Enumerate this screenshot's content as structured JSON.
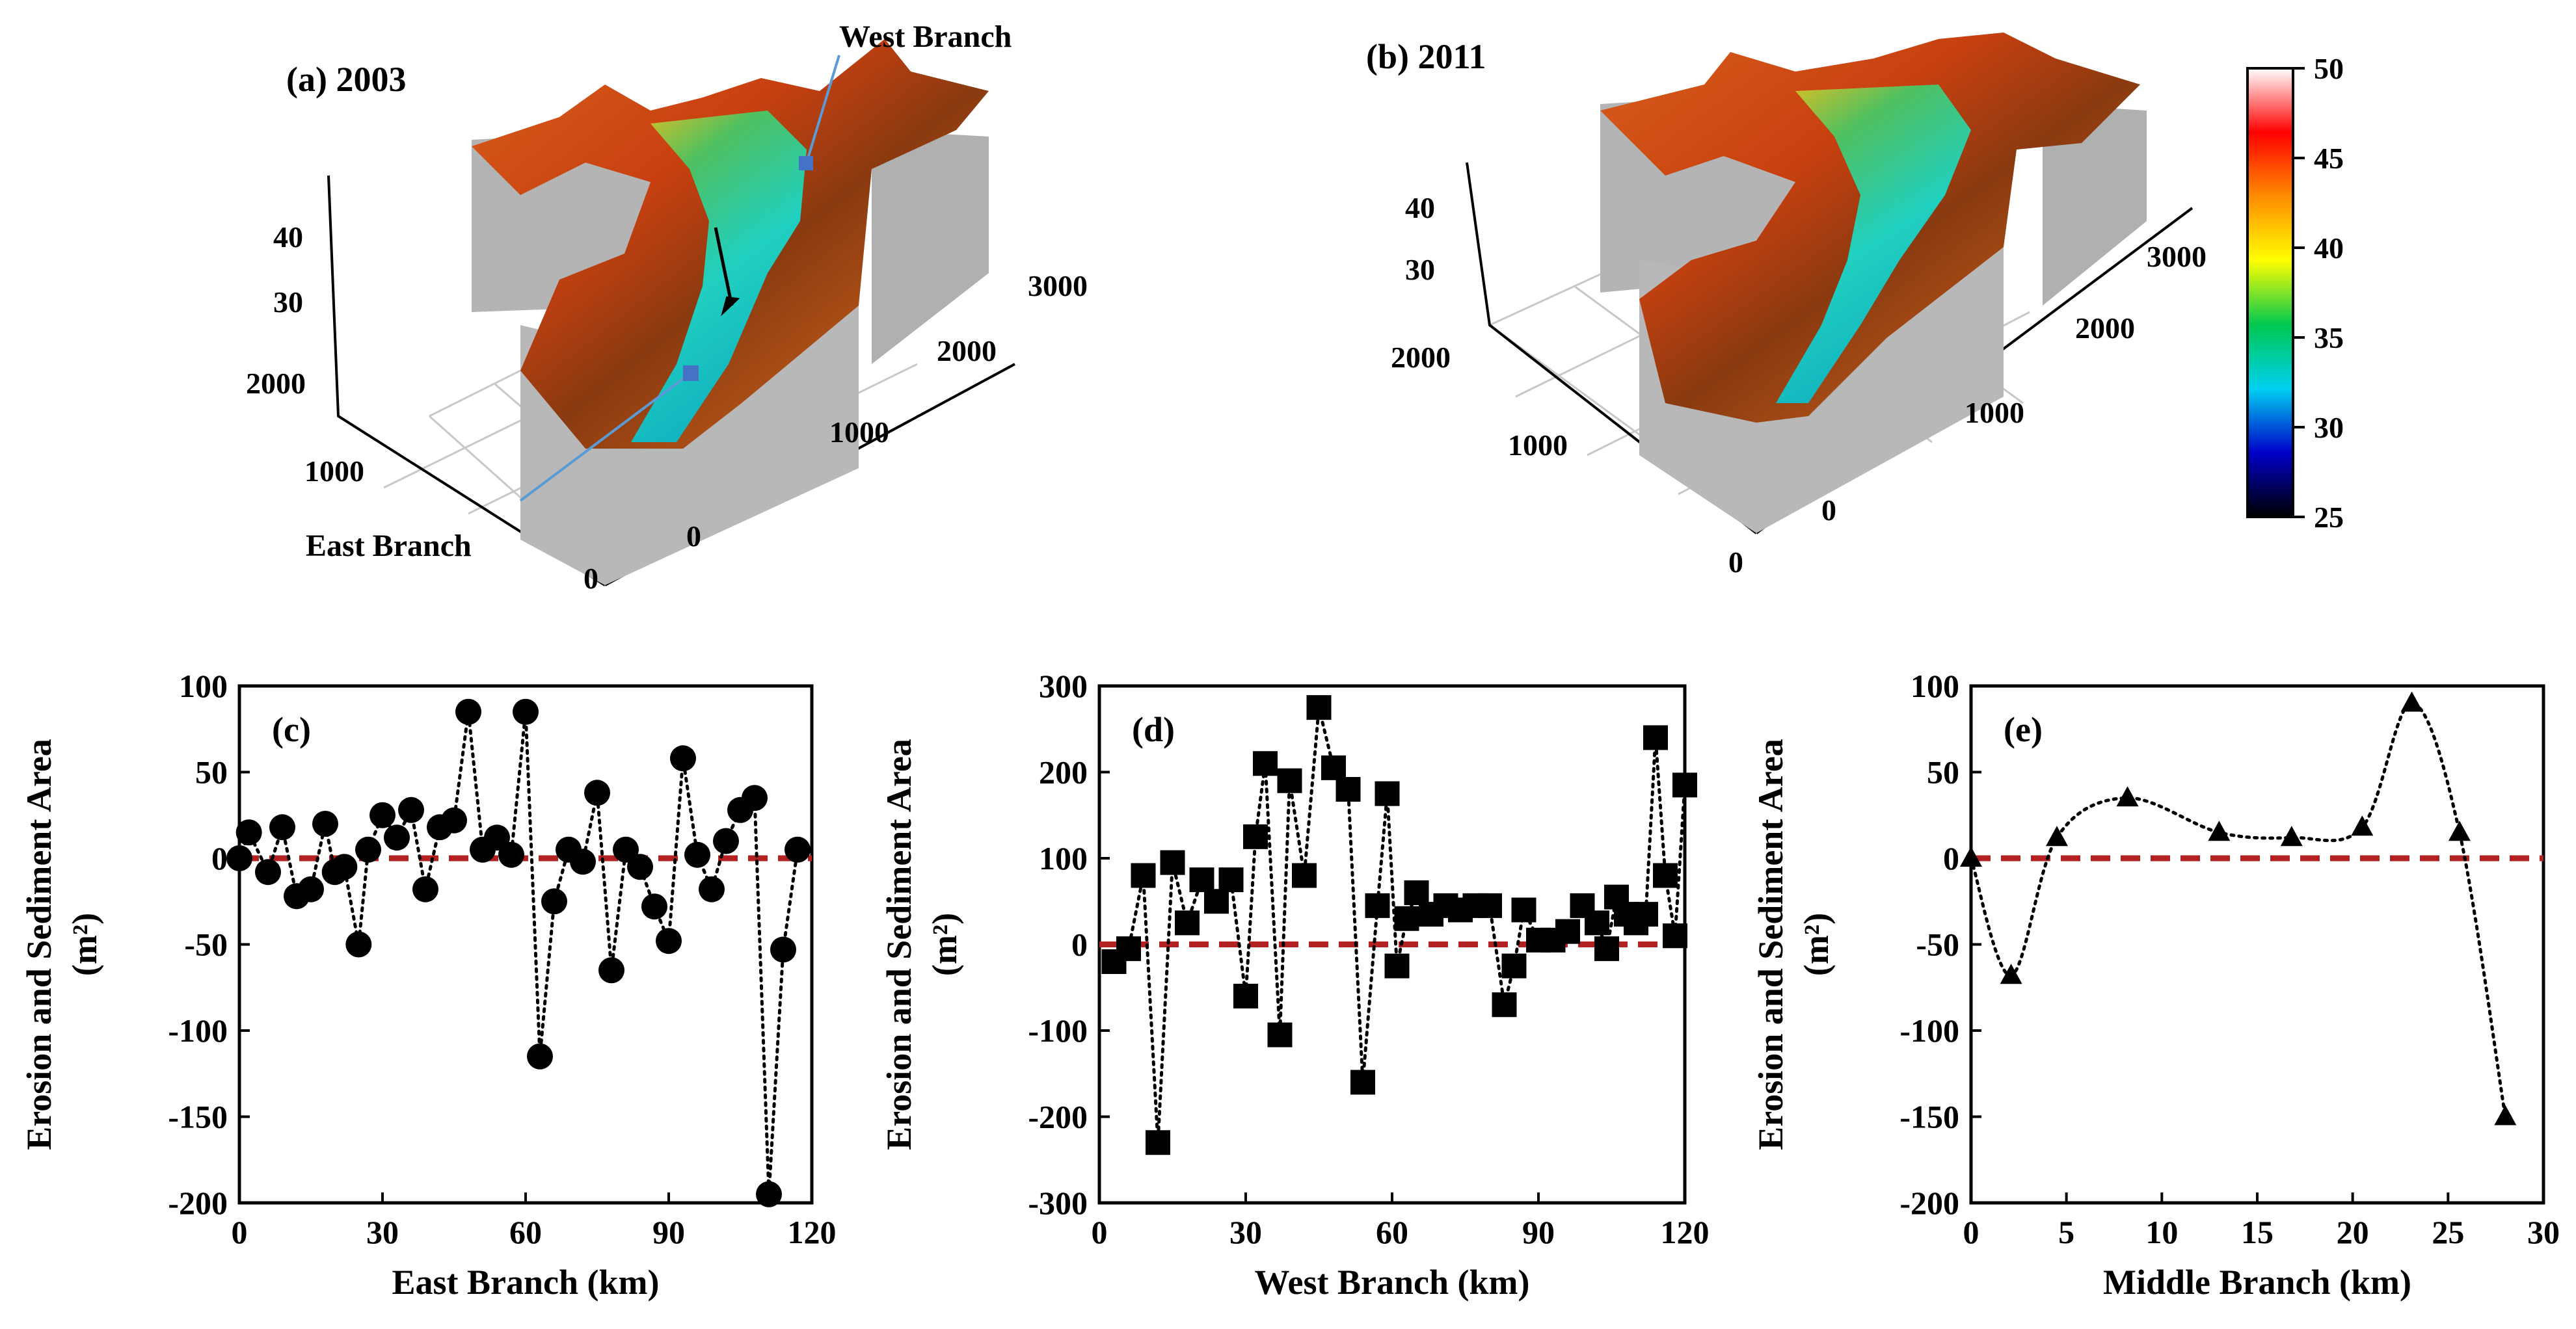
{
  "surface_panels": [
    {
      "label": "(a) 2003",
      "z_ticks": [
        "30",
        "40"
      ],
      "y_ticks": [
        "0",
        "1000",
        "2000"
      ],
      "x_ticks": [
        "0",
        "1000",
        "2000",
        "3000"
      ],
      "annotations": [
        "West Branch",
        "East Branch"
      ]
    },
    {
      "label": "(b) 2011",
      "z_ticks": [
        "30",
        "40"
      ],
      "y_ticks": [
        "0",
        "1000",
        "2000"
      ],
      "x_ticks": [
        "0",
        "1000",
        "2000",
        "3000"
      ],
      "annotations": []
    }
  ],
  "colorbar": {
    "ticks": [
      "25",
      "30",
      "35",
      "40",
      "45",
      "50"
    ],
    "min": 25,
    "max": 50,
    "colors": [
      "#000000",
      "#0000c8",
      "#00d0f0",
      "#00c850",
      "#ffff00",
      "#ff8c00",
      "#ff0000",
      "#ffffff"
    ]
  },
  "chart_data": [
    {
      "type": "scatter",
      "panel": "(c)",
      "xlabel": "East Branch  (km)",
      "ylabel": "Erosion and Sediment Area",
      "ylabel_unit": "(m²)",
      "xlim": [
        0,
        120
      ],
      "ylim": [
        -200,
        100
      ],
      "xticks": [
        0,
        30,
        60,
        90,
        120
      ],
      "yticks": [
        -200,
        -150,
        -100,
        -50,
        0,
        50,
        100
      ],
      "marker": "circle",
      "x": [
        0,
        2,
        6,
        9,
        12,
        15,
        18,
        20,
        22,
        25,
        27,
        30,
        33,
        36,
        39,
        42,
        45,
        48,
        51,
        54,
        57,
        60,
        63,
        66,
        69,
        72,
        75,
        78,
        81,
        84,
        87,
        90,
        93,
        96,
        99,
        102,
        105,
        108,
        111,
        114,
        117
      ],
      "y": [
        0,
        15,
        -8,
        18,
        -22,
        -18,
        20,
        -8,
        -5,
        -50,
        5,
        25,
        12,
        28,
        -18,
        18,
        22,
        85,
        5,
        12,
        2,
        85,
        -115,
        -25,
        5,
        -2,
        38,
        -65,
        5,
        -5,
        -28,
        -48,
        58,
        2,
        -18,
        10,
        28,
        35,
        -195,
        -53,
        5
      ]
    },
    {
      "type": "scatter",
      "panel": "(d)",
      "xlabel": "West Branch  (km)",
      "ylabel": "Erosion and Sediment Area",
      "ylabel_unit": "(m²)",
      "xlim": [
        0,
        120
      ],
      "ylim": [
        -300,
        300
      ],
      "xticks": [
        0,
        30,
        60,
        90,
        120
      ],
      "yticks": [
        -300,
        -200,
        -100,
        0,
        100,
        200,
        300
      ],
      "marker": "square",
      "x": [
        3,
        6,
        9,
        12,
        15,
        18,
        21,
        24,
        27,
        30,
        32,
        34,
        37,
        39,
        42,
        45,
        48,
        51,
        54,
        57,
        59,
        61,
        63,
        65,
        68,
        71,
        74,
        77,
        80,
        83,
        85,
        87,
        90,
        93,
        96,
        99,
        102,
        104,
        106,
        108,
        110,
        112,
        114,
        116,
        118,
        120
      ],
      "y": [
        -20,
        -5,
        80,
        -230,
        95,
        25,
        75,
        50,
        75,
        -60,
        125,
        210,
        -105,
        190,
        80,
        275,
        205,
        180,
        -160,
        45,
        175,
        -25,
        30,
        60,
        35,
        45,
        40,
        45,
        45,
        -70,
        -25,
        40,
        5,
        5,
        15,
        45,
        25,
        -5,
        55,
        35,
        25,
        35,
        240,
        80,
        10,
        185
      ]
    },
    {
      "type": "scatter",
      "panel": "(e)",
      "xlabel": "Middle Branch  (km)",
      "ylabel": "Erosion and Sediment Area",
      "ylabel_unit": "(m²)",
      "xlim": [
        0,
        30
      ],
      "ylim": [
        -200,
        100
      ],
      "xticks": [
        0,
        5,
        10,
        15,
        20,
        25,
        30
      ],
      "yticks": [
        -200,
        -150,
        -100,
        -50,
        0,
        50,
        100
      ],
      "marker": "triangle",
      "x": [
        0,
        2.1,
        4.5,
        8.2,
        13,
        16.8,
        20.5,
        23.1,
        25.6,
        28
      ],
      "y": [
        0,
        -68,
        12,
        35,
        15,
        12,
        18,
        90,
        15,
        -150
      ]
    }
  ]
}
